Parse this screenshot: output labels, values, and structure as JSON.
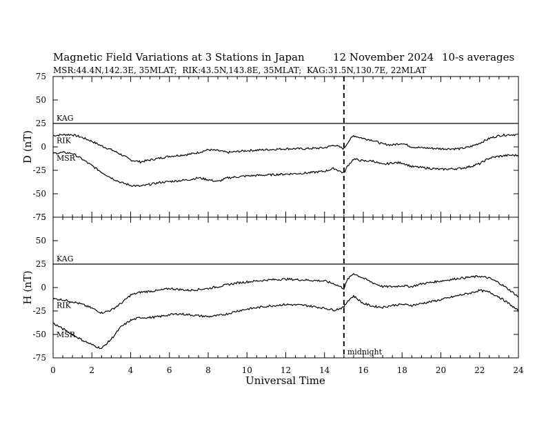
{
  "header": {
    "title": "Magnetic Field Variations at 3 Stations in Japan",
    "date": "12 November 2024",
    "averaging": "10-s averages",
    "stations_line": "MSR:44.4N,142.3E, 35MLAT;  RIK:43.5N,143.8E, 35MLAT;  KAG:31.5N,130.7E, 22MLAT"
  },
  "colors": {
    "trace": "#000000",
    "background": "#ffffff"
  },
  "chart_data": [
    {
      "type": "line",
      "panel": "D",
      "ylabel": "D (nT)",
      "xlabel": "",
      "xlim": [
        0,
        24
      ],
      "ylim": [
        -75,
        75
      ],
      "yticks": [
        -75,
        -50,
        -25,
        0,
        25,
        50,
        75
      ],
      "xticks": [
        0,
        2,
        4,
        6,
        8,
        10,
        12,
        14,
        16,
        18,
        20,
        22,
        24
      ],
      "grid": false,
      "series": [
        {
          "name": "KAG",
          "x": [
            0,
            24
          ],
          "y": [
            25,
            25
          ]
        },
        {
          "name": "RIK",
          "x": [
            0,
            0.5,
            1,
            1.5,
            2,
            2.5,
            3,
            3.5,
            4,
            4.5,
            5,
            5.5,
            6,
            6.5,
            7,
            7.5,
            8,
            8.5,
            9,
            9.5,
            10,
            11,
            12,
            13,
            14,
            14.5,
            15,
            15.2,
            15.5,
            16,
            16.5,
            17,
            17.5,
            18,
            18.5,
            19,
            20,
            21,
            21.5,
            22,
            22.5,
            23,
            23.5,
            24
          ],
          "y": [
            12,
            13,
            13,
            10,
            6,
            1,
            -3,
            -8,
            -14,
            -16,
            -14,
            -12,
            -10,
            -9,
            -8,
            -6,
            -3,
            -4,
            -6,
            -5,
            -4,
            -3,
            -2,
            -2,
            -1,
            2,
            -2,
            5,
            12,
            9,
            7,
            3,
            2,
            4,
            0,
            -1,
            -2,
            -2,
            0,
            4,
            9,
            12,
            13,
            13
          ]
        },
        {
          "name": "MSR",
          "x": [
            0,
            0.5,
            1,
            1.5,
            2,
            2.5,
            3,
            3.5,
            4,
            4.5,
            5,
            5.5,
            6,
            6.5,
            7,
            7.5,
            8,
            8.5,
            9,
            9.5,
            10,
            11,
            12,
            13,
            14,
            14.5,
            15,
            15.2,
            15.5,
            16,
            16.5,
            17,
            17.5,
            18,
            18.5,
            19,
            20,
            21,
            21.5,
            22,
            22.5,
            23,
            23.5,
            24
          ],
          "y": [
            -7,
            -6,
            -7,
            -13,
            -20,
            -27,
            -33,
            -38,
            -41,
            -42,
            -40,
            -38,
            -37,
            -36,
            -35,
            -33,
            -35,
            -37,
            -33,
            -32,
            -31,
            -30,
            -29,
            -28,
            -26,
            -23,
            -28,
            -20,
            -13,
            -15,
            -15,
            -19,
            -17,
            -17,
            -21,
            -22,
            -24,
            -23,
            -21,
            -18,
            -12,
            -10,
            -9,
            -9
          ]
        }
      ]
    },
    {
      "type": "line",
      "panel": "H",
      "ylabel": "H (nT)",
      "xlabel": "Universal Time",
      "xlim": [
        0,
        24
      ],
      "ylim": [
        -75,
        75
      ],
      "yticks": [
        -75,
        -50,
        -25,
        0,
        25,
        50,
        75
      ],
      "xticks": [
        0,
        2,
        4,
        6,
        8,
        10,
        12,
        14,
        16,
        18,
        20,
        22,
        24
      ],
      "grid": false,
      "series": [
        {
          "name": "KAG",
          "x": [
            0,
            24
          ],
          "y": [
            25,
            25
          ]
        },
        {
          "name": "RIK",
          "x": [
            0,
            0.5,
            1,
            1.5,
            2,
            2.5,
            3,
            3.5,
            4,
            4.5,
            5,
            5.5,
            6,
            6.5,
            7,
            7.5,
            8,
            8.5,
            9,
            9.5,
            10,
            11,
            12,
            13,
            14,
            14.5,
            15,
            15.2,
            15.5,
            16,
            16.5,
            17,
            17.5,
            18,
            18.5,
            19,
            20,
            21,
            21.5,
            22,
            22.5,
            23,
            23.5,
            24
          ],
          "y": [
            -12,
            -13,
            -15,
            -18,
            -22,
            -27,
            -24,
            -17,
            -8,
            -5,
            -4,
            -3,
            -1,
            -2,
            -3,
            -2,
            -1,
            1,
            3,
            5,
            6,
            8,
            9,
            8,
            7,
            4,
            -1,
            9,
            15,
            10,
            5,
            1,
            1,
            2,
            1,
            4,
            7,
            10,
            11,
            12,
            10,
            5,
            -2,
            -10
          ]
        },
        {
          "name": "MSR",
          "x": [
            0,
            0.5,
            1,
            1.5,
            2,
            2.5,
            3,
            3.5,
            4,
            4.5,
            5,
            5.5,
            6,
            6.5,
            7,
            7.5,
            8,
            8.5,
            9,
            9.5,
            10,
            11,
            12,
            13,
            14,
            14.5,
            15,
            15.2,
            15.5,
            16,
            16.5,
            17,
            17.5,
            18,
            18.5,
            19,
            20,
            21,
            21.5,
            22,
            22.5,
            23,
            23.5,
            24
          ],
          "y": [
            -38,
            -44,
            -50,
            -56,
            -61,
            -65,
            -55,
            -42,
            -35,
            -32,
            -32,
            -31,
            -29,
            -28,
            -29,
            -30,
            -31,
            -30,
            -28,
            -25,
            -23,
            -20,
            -18,
            -19,
            -22,
            -24,
            -21,
            -14,
            -9,
            -17,
            -20,
            -21,
            -19,
            -18,
            -19,
            -17,
            -13,
            -8,
            -6,
            -3,
            -5,
            -10,
            -17,
            -25
          ]
        }
      ],
      "annotations": [
        {
          "text": "midnight",
          "x": 15
        }
      ]
    }
  ],
  "midnight_ut": 15
}
